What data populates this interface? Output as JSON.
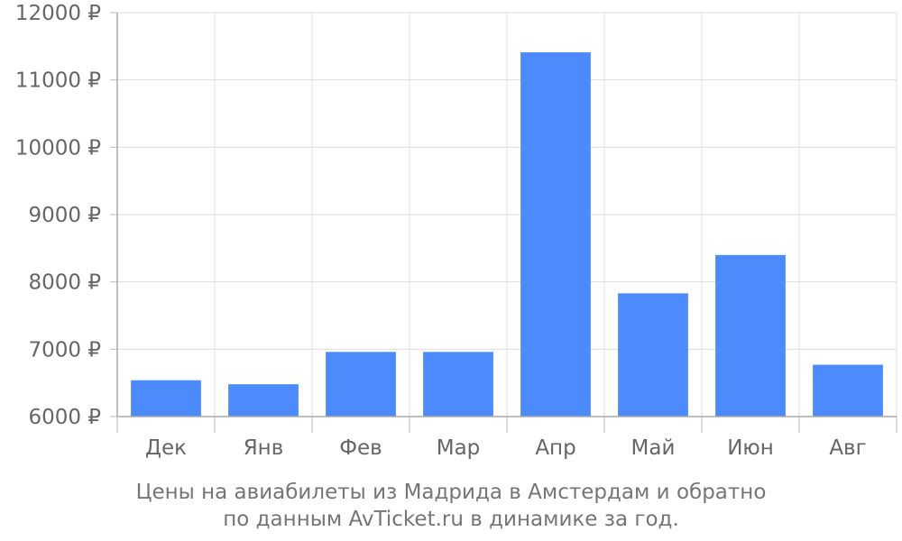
{
  "chart_data": {
    "type": "bar",
    "categories": [
      "Дек",
      "Янв",
      "Фев",
      "Мар",
      "Апр",
      "Май",
      "Июн",
      "Авг"
    ],
    "values": [
      6540,
      6480,
      6960,
      6960,
      11410,
      7830,
      8400,
      6770
    ],
    "ylim": [
      6000,
      12000
    ],
    "yticks": [
      "6000 ₽",
      "7000 ₽",
      "8000 ₽",
      "9000 ₽",
      "10000 ₽",
      "11000 ₽",
      "12000 ₽"
    ],
    "grid": true,
    "bar_color": "#4d8afc",
    "caption_line1": "Цены на авиабилеты из Мадрида в Амстердам и обратно",
    "caption_line2": "по данным AvTicket.ru в динамике за год."
  }
}
